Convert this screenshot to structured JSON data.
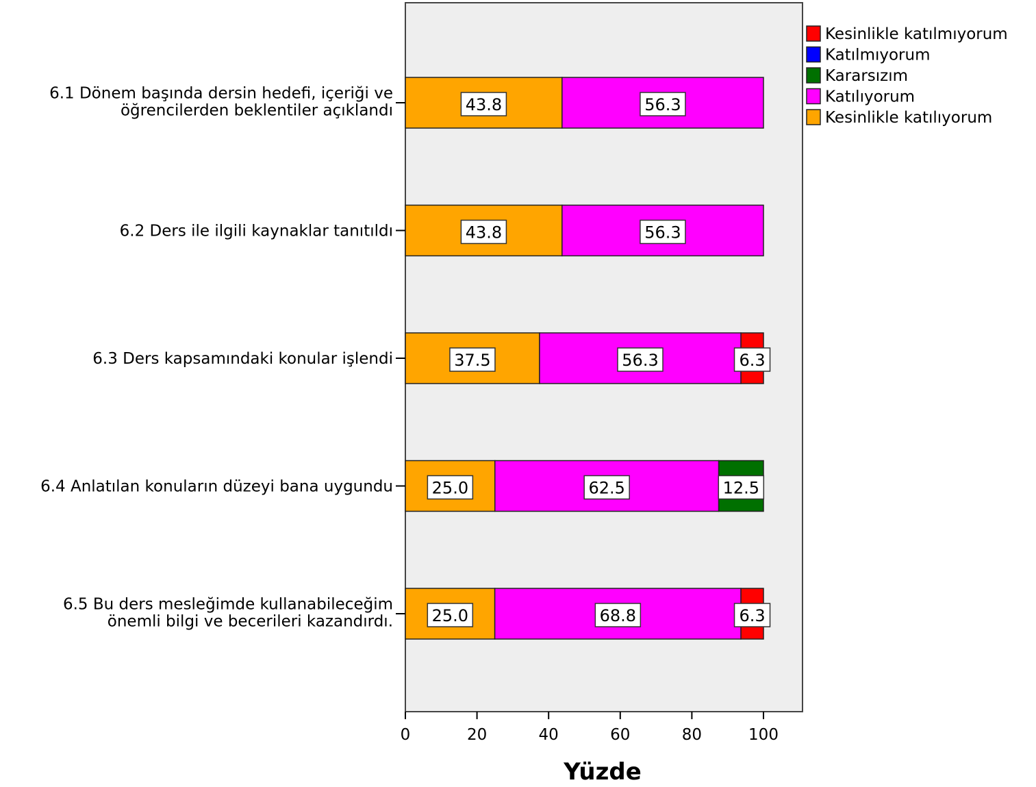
{
  "chart_data": {
    "type": "bar",
    "orientation": "horizontal",
    "stacked": true,
    "categories": [
      [
        "6.1 Dönem başında dersin hedefi, içeriği ve",
        "öğrencilerden beklentiler açıklandı"
      ],
      [
        "6.2 Ders ile ilgili kaynaklar tanıtıldı"
      ],
      [
        "6.3 Ders kapsamındaki konular işlendi"
      ],
      [
        "6.4 Anlatılan konuların düzeyi bana uygundu"
      ],
      [
        "6.5 Bu ders mesleğimde kullanabileceğim",
        "önemli bilgi ve becerileri kazandırdı."
      ]
    ],
    "series": [
      {
        "name": "Kesinlikle katılıyorum",
        "color": "#FFA500",
        "values": [
          43.8,
          43.8,
          37.5,
          25.0,
          25.0
        ]
      },
      {
        "name": "Katılıyorum",
        "color": "#FF00FF",
        "values": [
          56.3,
          56.3,
          56.3,
          62.5,
          68.8
        ]
      },
      {
        "name": "Kararsızım",
        "color": "#007000",
        "values": [
          0,
          0,
          0,
          12.5,
          0
        ]
      },
      {
        "name": "Katılmıyorum",
        "color": "#0000FF",
        "values": [
          0,
          0,
          0,
          0,
          0
        ]
      },
      {
        "name": "Kesinlikle katılmıyorum",
        "color": "#FF0000",
        "values": [
          0,
          0,
          6.3,
          0,
          6.3
        ]
      }
    ],
    "legend_order": [
      "Kesinlikle katılmıyorum",
      "Katılmıyorum",
      "Kararsızım",
      "Katılıyorum",
      "Kesinlikle katılıyorum"
    ],
    "xlabel": "Yüzde",
    "ylabel": "",
    "xlim": [
      0,
      110
    ],
    "xticks": [
      0,
      20,
      40,
      60,
      80,
      100
    ],
    "legend_position": "right",
    "plot_background": "#EEEEEE",
    "grid": false
  }
}
